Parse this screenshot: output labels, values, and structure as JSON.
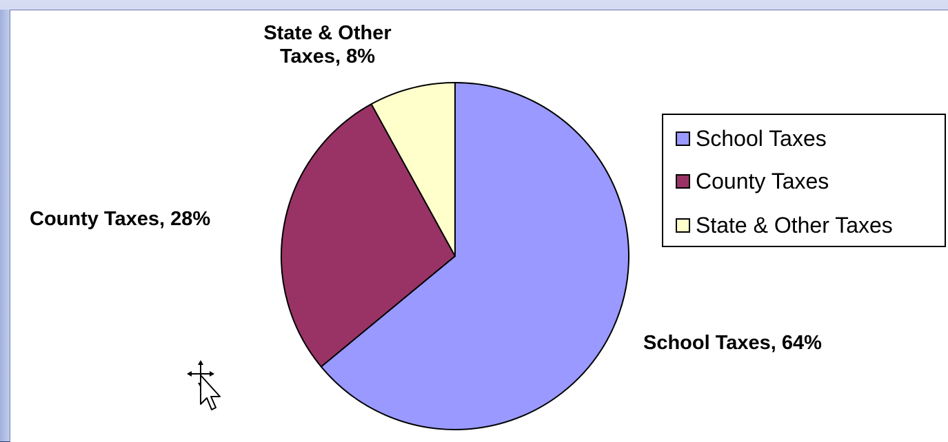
{
  "chart_data": {
    "type": "pie",
    "title": "",
    "categories": [
      "School Taxes",
      "County Taxes",
      "State & Other Taxes"
    ],
    "values": [
      64,
      28,
      8
    ],
    "unit": "%",
    "colors": [
      "#9999ff",
      "#993366",
      "#ffffcc"
    ],
    "start_angle_deg": 0,
    "direction": "clockwise",
    "data_labels": [
      "School Taxes, 64%",
      "County Taxes, 28%",
      "State & Other Taxes, 8%"
    ],
    "legend": {
      "placement": "right",
      "entries": [
        "School Taxes",
        "County Taxes",
        "State & Other Taxes"
      ]
    }
  },
  "labels": {
    "school": "School  Taxes, 64%",
    "county": "County Taxes, 28%",
    "state": "State & Other Taxes, 8%"
  }
}
